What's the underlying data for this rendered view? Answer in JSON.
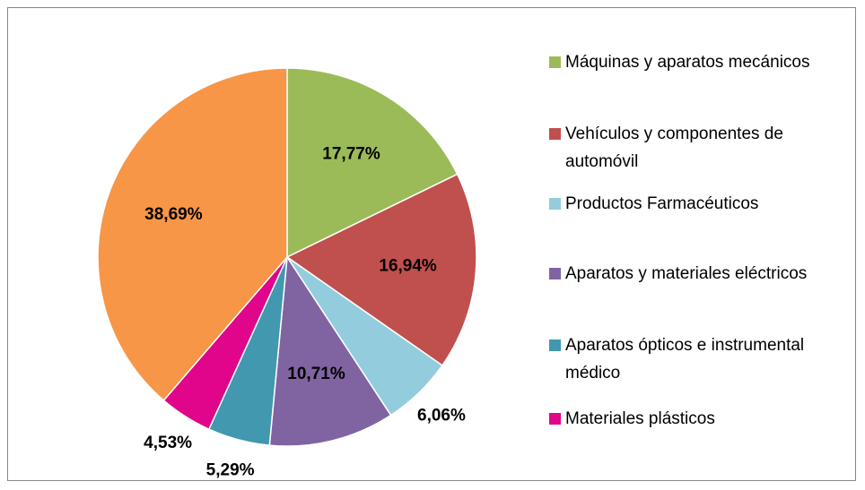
{
  "chart_data": {
    "type": "pie",
    "categories": [
      "Máquinas y aparatos mecánicos",
      "Vehículos y componentes de automóvil",
      "Productos Farmacéuticos",
      "Aparatos y materiales eléctricos",
      "Aparatos ópticos e instrumental médico",
      "Materiales plásticos",
      null
    ],
    "values": [
      17.77,
      16.94,
      6.06,
      10.71,
      5.29,
      4.53,
      38.69
    ],
    "value_labels": [
      "17,77%",
      "16,94%",
      "6,06%",
      "10,71%",
      "5,29%",
      "4,53%",
      "38,69%"
    ],
    "colors": [
      "#9bbb59",
      "#c0504d",
      "#93cddd",
      "#8064a2",
      "#4198af",
      "#e0058a",
      "#f79646"
    ]
  }
}
